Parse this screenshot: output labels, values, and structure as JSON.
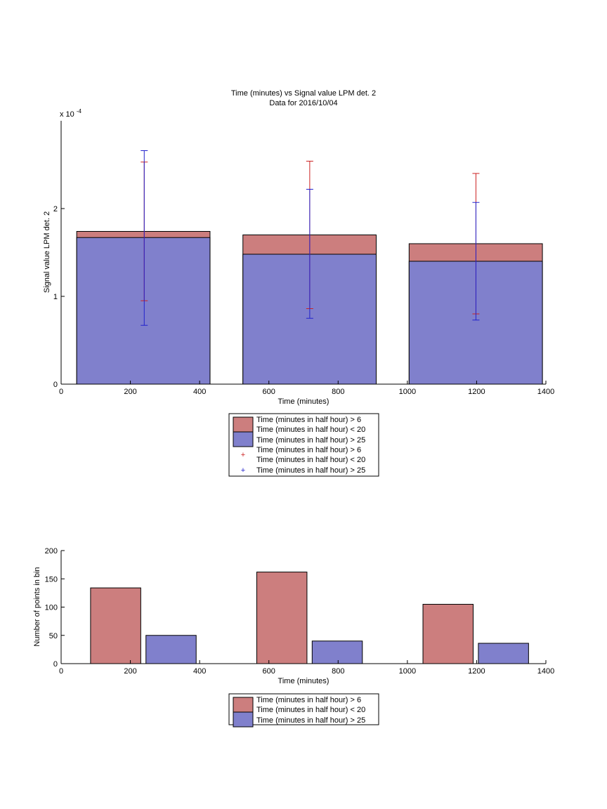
{
  "chart_data": [
    {
      "type": "bar",
      "stacked": true,
      "title": "Time (minutes) vs Signal value LPM det. 2",
      "subtitle": "Data for 2016/10/04",
      "xlabel": "Time (minutes)",
      "ylabel": "Signal value LPM det. 2",
      "y_exponent_label": "x 10",
      "y_exponent_power": "-4",
      "xlim": [
        0,
        1400
      ],
      "ylim": [
        0,
        0.0003
      ],
      "xticks": [
        "0",
        "200",
        "400",
        "600",
        "800",
        "1000",
        "1200",
        "1400"
      ],
      "yticks": [
        "0",
        "1",
        "2"
      ],
      "bars": [
        {
          "x0": 45,
          "x1": 430,
          "total": 0.000174,
          "lower": 0.000167
        },
        {
          "x0": 525,
          "x1": 910,
          "total": 0.00017,
          "lower": 0.000148
        },
        {
          "x0": 1005,
          "x1": 1390,
          "total": 0.00016,
          "lower": 0.00014
        }
      ],
      "errorbars": [
        {
          "series": "Time (minutes in half hour) > 6 Time (minutes in half hour) < 20",
          "color": "#cc2222",
          "points": [
            {
              "x": 240,
              "low": 9.5e-05,
              "high": 0.000253
            },
            {
              "x": 718,
              "low": 8.6e-05,
              "high": 0.000254
            },
            {
              "x": 1198,
              "low": 8e-05,
              "high": 0.00024
            }
          ]
        },
        {
          "series": "Time (minutes in half hour) > 25",
          "color": "#2222cc",
          "points": [
            {
              "x": 240,
              "low": 6.7e-05,
              "high": 0.000266
            },
            {
              "x": 718,
              "low": 7.5e-05,
              "high": 0.000222
            },
            {
              "x": 1198,
              "low": 7.3e-05,
              "high": 0.000207
            }
          ]
        }
      ],
      "legend": [
        {
          "line1": "Time (minutes in half hour) > 6",
          "line2": "Time (minutes in half hour) < 20",
          "line3": "Time (minutes in half hour) > 25"
        },
        {
          "line1": "Time (minutes in half hour) > 6",
          "line2": "Time (minutes in half hour) < 20",
          "line3": "Time (minutes in half hour) > 25"
        }
      ]
    },
    {
      "type": "bar",
      "xlabel": "Time (minutes)",
      "ylabel": "Number of points in bin",
      "xlim": [
        0,
        1400
      ],
      "ylim": [
        0,
        200
      ],
      "xticks": [
        "0",
        "200",
        "400",
        "600",
        "800",
        "1000",
        "1200",
        "1400"
      ],
      "yticks": [
        "0",
        "50",
        "100",
        "150",
        "200"
      ],
      "series": [
        {
          "name": "Time (minutes in half hour) > 6 Time (minutes in half hour) < 20",
          "color": "#cc7e7e",
          "bars": [
            {
              "x0": 85,
              "x1": 230,
              "value": 134
            },
            {
              "x0": 565,
              "x1": 710,
              "value": 162
            },
            {
              "x0": 1045,
              "x1": 1190,
              "value": 105
            }
          ]
        },
        {
          "name": "Time (minutes in half hour) > 25",
          "color": "#8080cc",
          "bars": [
            {
              "x0": 245,
              "x1": 390,
              "value": 50
            },
            {
              "x0": 725,
              "x1": 870,
              "value": 40
            },
            {
              "x0": 1205,
              "x1": 1350,
              "value": 36
            }
          ]
        }
      ],
      "legend": {
        "line1": "Time (minutes in half hour) > 6",
        "line2": "Time (minutes in half hour) < 20",
        "line3": "Time (minutes in half hour) > 25"
      }
    }
  ],
  "colors": {
    "upper": "#cc7e7e",
    "lower": "#8080cc",
    "err_red": "#cc2222",
    "err_blue": "#2222cc"
  }
}
